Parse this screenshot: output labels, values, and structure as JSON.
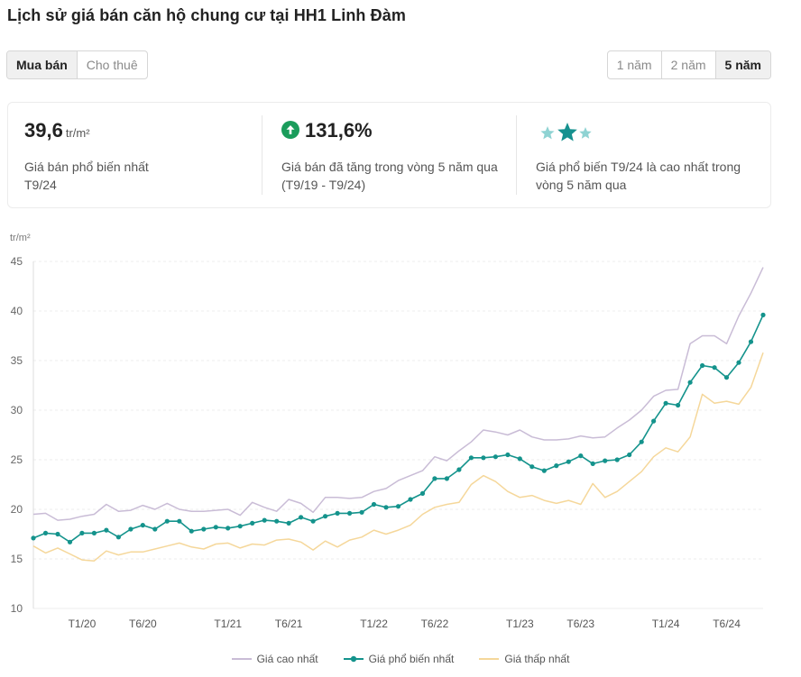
{
  "page_title": "Lịch sử giá bán căn hộ chung cư tại HH1 Linh Đàm",
  "type_tabs": [
    {
      "label": "Mua bán",
      "active": true
    },
    {
      "label": "Cho thuê",
      "active": false
    }
  ],
  "range_tabs": [
    {
      "label": "1 năm",
      "active": false
    },
    {
      "label": "2 năm",
      "active": false
    },
    {
      "label": "5 năm",
      "active": true
    }
  ],
  "stats": {
    "price_value": "39,6",
    "price_unit": "tr/m²",
    "price_desc_line1": "Giá bán phổ biến nhất",
    "price_desc_line2": "T9/24",
    "growth_value": "131,6%",
    "growth_desc_line1": "Giá bán đã tăng trong vòng 5 năm qua",
    "growth_desc_line2": "(T9/19 - T9/24)",
    "rank_desc_line1": "Giá phổ biến T9/24 là cao nhất trong",
    "rank_desc_line2": "vòng 5 năm qua"
  },
  "colors": {
    "accent_green": "#1a9c5b",
    "star_light": "#8fd3d3",
    "star_dark": "#16918f",
    "high_line": "#c9bcd6",
    "mid_line": "#14938c",
    "low_line": "#f5d79a",
    "grid": "#ececec"
  },
  "chart_data": {
    "type": "line",
    "ylabel": "tr/m²",
    "ylim": [
      10,
      45
    ],
    "yticks": [
      10,
      15,
      20,
      25,
      30,
      35,
      40,
      45
    ],
    "x_tick_labels": [
      {
        "index": 4,
        "label": "T1/20"
      },
      {
        "index": 9,
        "label": "T6/20"
      },
      {
        "index": 16,
        "label": "T1/21"
      },
      {
        "index": 21,
        "label": "T6/21"
      },
      {
        "index": 28,
        "label": "T1/22"
      },
      {
        "index": 33,
        "label": "T6/22"
      },
      {
        "index": 40,
        "label": "T1/23"
      },
      {
        "index": 45,
        "label": "T6/23"
      },
      {
        "index": 52,
        "label": "T1/24"
      },
      {
        "index": 57,
        "label": "T6/24"
      }
    ],
    "x_range": [
      "T9/19",
      "T9/24"
    ],
    "grid": true,
    "legend_position": "bottom",
    "series": [
      {
        "name": "Giá cao nhất",
        "key": "high",
        "values": [
          19.5,
          19.6,
          18.9,
          19.0,
          19.3,
          19.5,
          20.5,
          19.8,
          19.9,
          20.4,
          20.0,
          20.6,
          20.0,
          19.8,
          19.8,
          19.9,
          20.0,
          19.4,
          20.7,
          20.2,
          19.8,
          21.0,
          20.6,
          19.7,
          21.2,
          21.2,
          21.1,
          21.2,
          21.8,
          22.1,
          22.9,
          23.4,
          23.9,
          25.3,
          24.9,
          25.9,
          26.8,
          28.0,
          27.8,
          27.5,
          28.0,
          27.3,
          27.0,
          27.0,
          27.1,
          27.4,
          27.2,
          27.3,
          28.2,
          29.0,
          30.0,
          31.4,
          32.0,
          32.1,
          36.7,
          37.5,
          37.5,
          36.7,
          39.5,
          41.8,
          44.4
        ]
      },
      {
        "name": "Giá phổ biến nhất",
        "key": "mid",
        "values": [
          17.1,
          17.6,
          17.5,
          16.7,
          17.6,
          17.6,
          17.9,
          17.2,
          18.0,
          18.4,
          18.0,
          18.8,
          18.8,
          17.8,
          18.0,
          18.2,
          18.1,
          18.3,
          18.6,
          18.9,
          18.8,
          18.6,
          19.2,
          18.8,
          19.3,
          19.6,
          19.6,
          19.7,
          20.5,
          20.2,
          20.3,
          21.0,
          21.6,
          23.1,
          23.1,
          24.0,
          25.2,
          25.2,
          25.3,
          25.5,
          25.1,
          24.3,
          23.9,
          24.4,
          24.8,
          25.4,
          24.6,
          24.9,
          25.0,
          25.5,
          26.8,
          28.9,
          30.7,
          30.5,
          32.8,
          34.5,
          34.3,
          33.3,
          34.8,
          36.9,
          39.6
        ]
      },
      {
        "name": "Giá thấp nhất",
        "key": "low",
        "values": [
          16.3,
          15.6,
          16.1,
          15.5,
          14.9,
          14.8,
          15.8,
          15.4,
          15.7,
          15.7,
          16.0,
          16.3,
          16.6,
          16.2,
          16.0,
          16.5,
          16.6,
          16.1,
          16.5,
          16.4,
          16.9,
          17.0,
          16.7,
          15.9,
          16.8,
          16.2,
          16.9,
          17.2,
          17.9,
          17.5,
          17.9,
          18.4,
          19.5,
          20.2,
          20.5,
          20.7,
          22.5,
          23.4,
          22.8,
          21.8,
          21.2,
          21.4,
          20.9,
          20.6,
          20.9,
          20.5,
          22.6,
          21.2,
          21.8,
          22.8,
          23.8,
          25.3,
          26.2,
          25.8,
          27.3,
          31.6,
          30.7,
          30.9,
          30.6,
          32.3,
          35.8
        ]
      }
    ]
  },
  "legend": {
    "high_label": "Giá cao nhất",
    "mid_label": "Giá phổ biến nhất",
    "low_label": "Giá thấp nhất"
  }
}
